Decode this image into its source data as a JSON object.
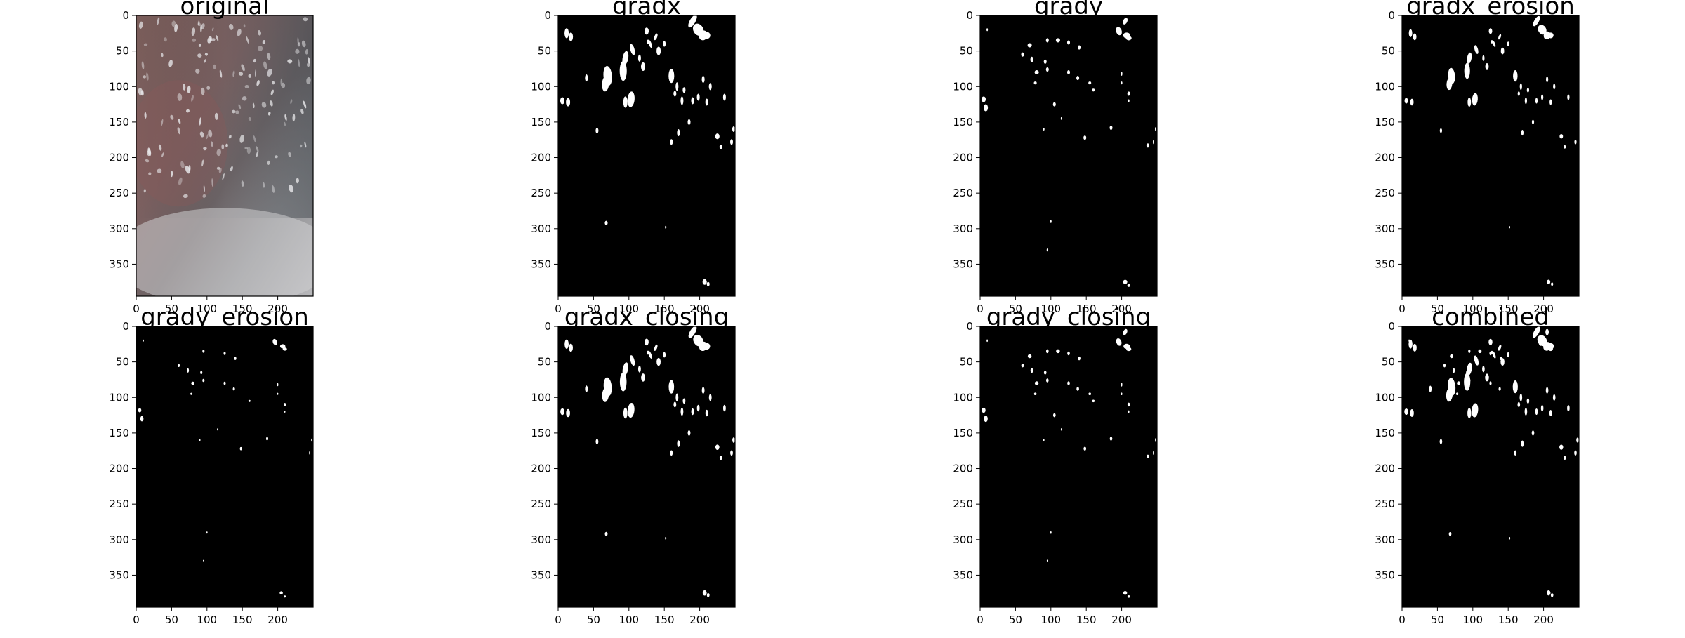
{
  "figure": {
    "panels": [
      {
        "title": "original",
        "image": "photo"
      },
      {
        "title": "gradx",
        "image": "mask"
      },
      {
        "title": "grady",
        "image": "mask"
      },
      {
        "title": "gradx_erosion",
        "image": "mask"
      },
      {
        "title": "grady_erosion",
        "image": "mask"
      },
      {
        "title": "gradx_closing",
        "image": "mask"
      },
      {
        "title": "grady_closing",
        "image": "mask"
      },
      {
        "title": "combined",
        "image": "mask"
      }
    ]
  },
  "chart_data": {
    "type": "heatmap",
    "layout": "2 rows x 4 columns of image panels",
    "titles": [
      "original",
      "gradx",
      "grady",
      "gradx_erosion",
      "grady_erosion",
      "gradx_closing",
      "grady_closing",
      "combined"
    ],
    "xticks": [
      0,
      50,
      100,
      150,
      200
    ],
    "yticks": [
      0,
      50,
      100,
      150,
      200,
      250,
      300,
      350
    ],
    "xlim": [
      0,
      250
    ],
    "ylim": [
      395,
      0
    ],
    "xlabel": "",
    "ylabel": "",
    "grid": false,
    "colors": {
      "mask_background": "#000000",
      "mask_foreground": "#ffffff"
    }
  }
}
